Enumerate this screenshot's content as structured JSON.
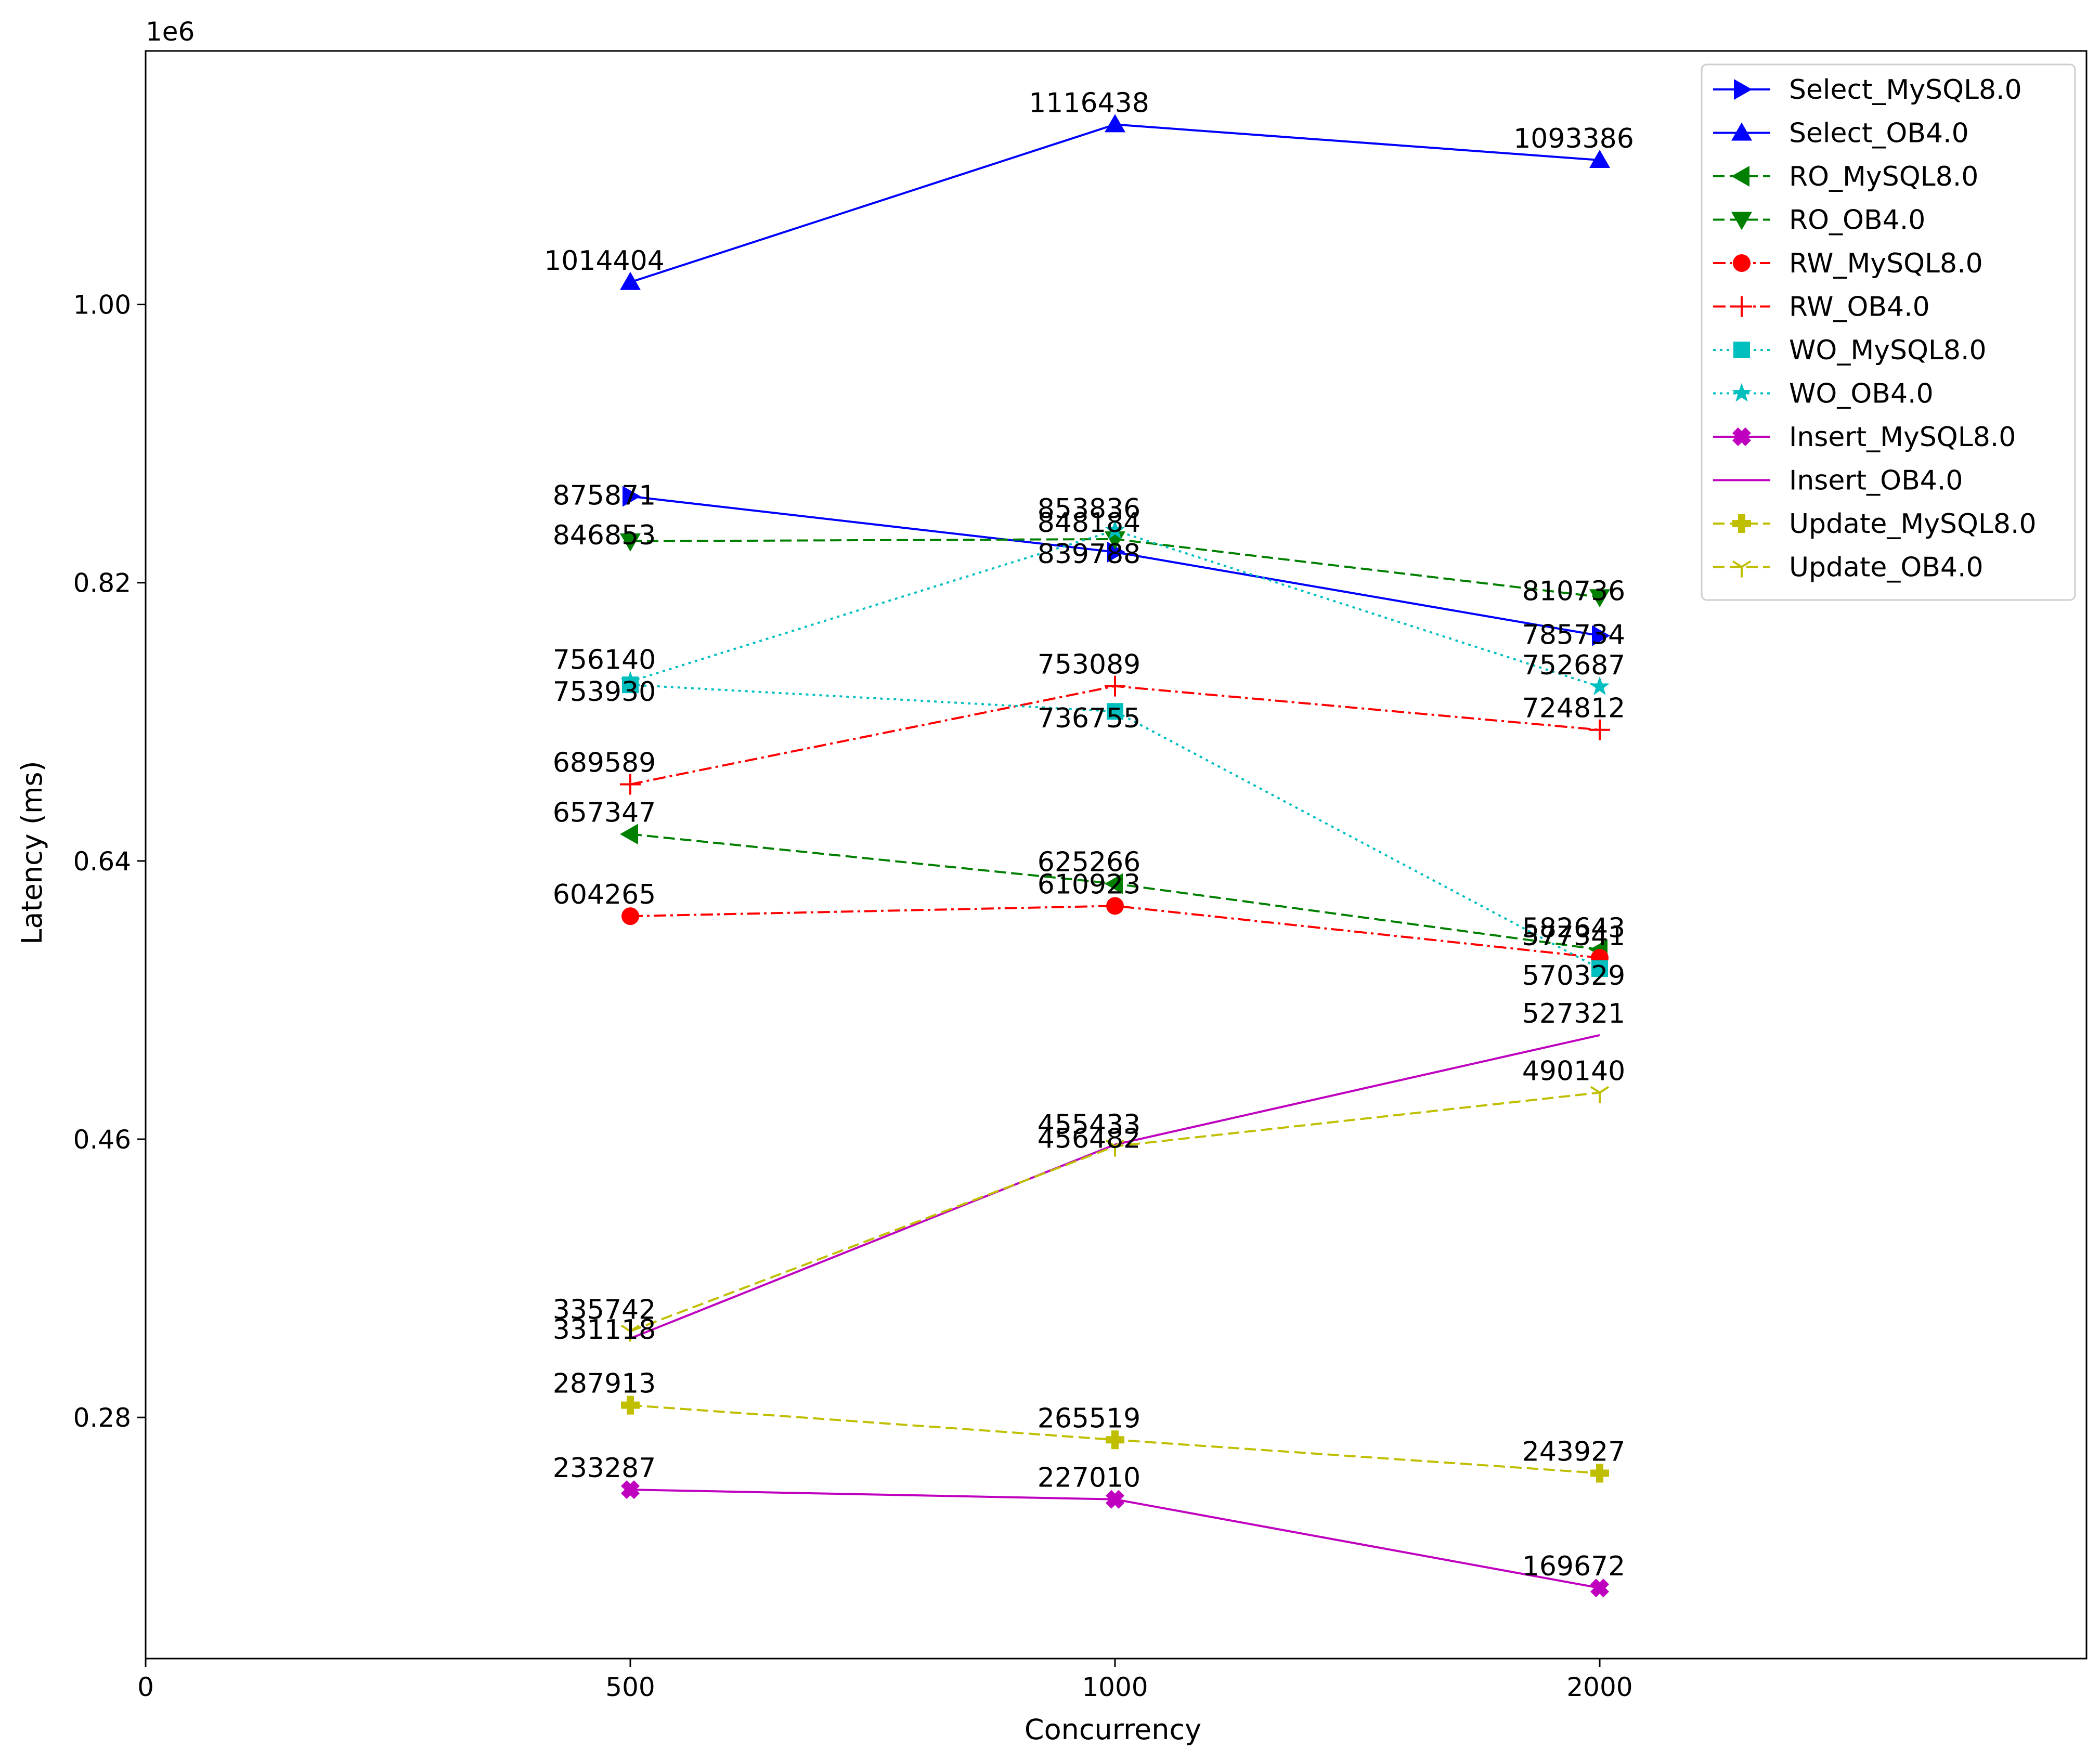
{
  "chart_data": {
    "type": "line",
    "xlabel": "Concurrency",
    "ylabel": "Latency (ms)",
    "y_offset_text": "1e6",
    "x_ticks": [
      0,
      500,
      1000,
      2000
    ],
    "x_tick_labels": [
      "0",
      "500",
      "1000",
      "2000"
    ],
    "x_positions": [
      1,
      2,
      3
    ],
    "x_categories": [
      "500",
      "1000",
      "2000"
    ],
    "y_ticks": [
      280000,
      460000,
      640000,
      820000,
      1000000
    ],
    "y_tick_labels": [
      "0.28",
      "0.46",
      "0.64",
      "0.82",
      "1.00"
    ],
    "ylim": [
      124000,
      1164000
    ],
    "legend_position": "top-right",
    "grid": false,
    "series": [
      {
        "name": "Select_MySQL8.0",
        "values": [
          875871,
          839788,
          785734
        ],
        "labels": [
          "875871",
          "839788",
          "785734"
        ],
        "color": "#0000ff",
        "marker": "triangle-right",
        "linestyle": "solid"
      },
      {
        "name": "Select_OB4.0",
        "values": [
          1014404,
          1116438,
          1093386
        ],
        "labels": [
          "1014404",
          "1116438",
          "1093386"
        ],
        "color": "#0000ff",
        "marker": "triangle-up",
        "linestyle": "solid"
      },
      {
        "name": "RO_MySQL8.0",
        "values": [
          657347,
          625266,
          582643
        ],
        "labels": [
          "657347",
          "625266",
          "582643"
        ],
        "color": "#008000",
        "marker": "triangle-left",
        "linestyle": "dashed"
      },
      {
        "name": "RO_OB4.0",
        "values": [
          846853,
          848184,
          810736
        ],
        "labels": [
          "846853",
          "848184",
          "810736"
        ],
        "color": "#008000",
        "marker": "triangle-down",
        "linestyle": "dashed"
      },
      {
        "name": "RW_MySQL8.0",
        "values": [
          604265,
          610923,
          577341
        ],
        "labels": [
          "604265",
          "610923",
          "577341"
        ],
        "color": "#ff0000",
        "marker": "circle",
        "linestyle": "dashdot"
      },
      {
        "name": "RW_OB4.0",
        "values": [
          689589,
          753089,
          724812
        ],
        "labels": [
          "689589",
          "753089",
          "724812"
        ],
        "color": "#ff0000",
        "marker": "plus",
        "linestyle": "dashdot"
      },
      {
        "name": "WO_MySQL8.0",
        "values": [
          753930,
          736755,
          570329
        ],
        "labels": [
          "753930",
          "736755",
          "570329"
        ],
        "color": "#00bfbf",
        "marker": "square",
        "linestyle": "dotted"
      },
      {
        "name": "WO_OB4.0",
        "values": [
          756140,
          853836,
          752687
        ],
        "labels": [
          "756140",
          "853836",
          "752687"
        ],
        "color": "#00bfbf",
        "marker": "star",
        "linestyle": "dotted"
      },
      {
        "name": "Insert_MySQL8.0",
        "values": [
          233287,
          227010,
          169672
        ],
        "labels": [
          "233287",
          "227010",
          "169672"
        ],
        "color": "#bf00bf",
        "marker": "x-filled",
        "linestyle": "solid"
      },
      {
        "name": "Insert_OB4.0",
        "values": [
          331118,
          456482,
          527321
        ],
        "labels": [
          "331118",
          "456482",
          "527321"
        ],
        "color": "#bf00bf",
        "marker": "none",
        "linestyle": "solid"
      },
      {
        "name": "Update_MySQL8.0",
        "values": [
          287913,
          265519,
          243927
        ],
        "labels": [
          "287913",
          "265519",
          "243927"
        ],
        "color": "#bfbf00",
        "marker": "plus-filled",
        "linestyle": "dashed"
      },
      {
        "name": "Update_OB4.0",
        "values": [
          335742,
          455433,
          490140
        ],
        "labels": [
          "335742",
          "455433",
          "490140"
        ],
        "color": "#bfbf00",
        "marker": "tri-down",
        "linestyle": "dashed"
      }
    ]
  }
}
